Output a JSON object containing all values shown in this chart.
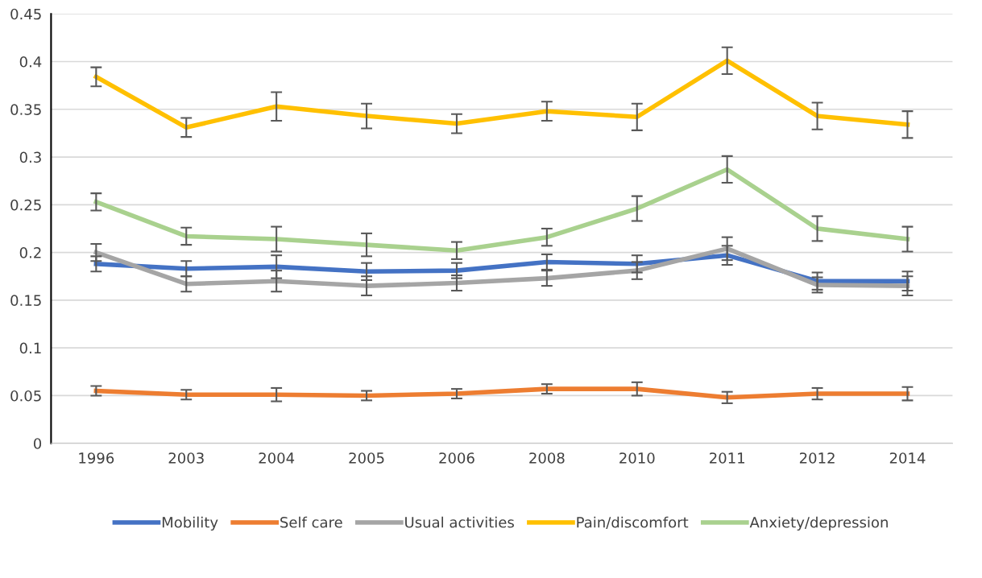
{
  "chart_data": {
    "type": "line",
    "categories": [
      "1996",
      "2003",
      "2004",
      "2005",
      "2006",
      "2008",
      "2010",
      "2011",
      "2012",
      "2014"
    ],
    "series": [
      {
        "name": "Mobility",
        "color": "#4472c4",
        "values": [
          0.188,
          0.183,
          0.185,
          0.18,
          0.181,
          0.19,
          0.188,
          0.197,
          0.17,
          0.17
        ],
        "errors": [
          0.008,
          0.008,
          0.012,
          0.009,
          0.008,
          0.008,
          0.009,
          0.01,
          0.009,
          0.01
        ]
      },
      {
        "name": "Self care",
        "color": "#ed7d31",
        "values": [
          0.055,
          0.051,
          0.051,
          0.05,
          0.052,
          0.057,
          0.057,
          0.048,
          0.052,
          0.052
        ],
        "errors": [
          0.005,
          0.005,
          0.007,
          0.005,
          0.005,
          0.005,
          0.007,
          0.006,
          0.006,
          0.007
        ]
      },
      {
        "name": "Usual activities",
        "color": "#a5a5a5",
        "values": [
          0.2,
          0.167,
          0.17,
          0.165,
          0.168,
          0.173,
          0.181,
          0.204,
          0.166,
          0.165
        ],
        "errors": [
          0.009,
          0.008,
          0.011,
          0.01,
          0.008,
          0.008,
          0.009,
          0.012,
          0.008,
          0.01
        ]
      },
      {
        "name": "Pain/discomfort",
        "color": "#ffc000",
        "values": [
          0.384,
          0.331,
          0.353,
          0.343,
          0.335,
          0.348,
          0.342,
          0.401,
          0.343,
          0.334
        ],
        "errors": [
          0.01,
          0.01,
          0.015,
          0.013,
          0.01,
          0.01,
          0.014,
          0.014,
          0.014,
          0.014
        ]
      },
      {
        "name": "Anxiety/depression",
        "color": "#a9d18e",
        "values": [
          0.253,
          0.217,
          0.214,
          0.208,
          0.202,
          0.216,
          0.246,
          0.287,
          0.225,
          0.214
        ],
        "errors": [
          0.009,
          0.009,
          0.013,
          0.012,
          0.009,
          0.009,
          0.013,
          0.014,
          0.013,
          0.013
        ]
      }
    ],
    "ylim": [
      0,
      0.45
    ],
    "yticks": [
      {
        "value": 0,
        "label": "0"
      },
      {
        "value": 0.05,
        "label": "0.05"
      },
      {
        "value": 0.1,
        "label": "0.1"
      },
      {
        "value": 0.15,
        "label": "0.15"
      },
      {
        "value": 0.2,
        "label": "0.2"
      },
      {
        "value": 0.25,
        "label": "0.25"
      },
      {
        "value": 0.3,
        "label": "0.3"
      },
      {
        "value": 0.35,
        "label": "0.35"
      },
      {
        "value": 0.4,
        "label": "0.4"
      },
      {
        "value": 0.45,
        "label": "0.45"
      }
    ],
    "grid": "y",
    "legend": "bottom",
    "marker": "none",
    "line_style": "solid"
  }
}
